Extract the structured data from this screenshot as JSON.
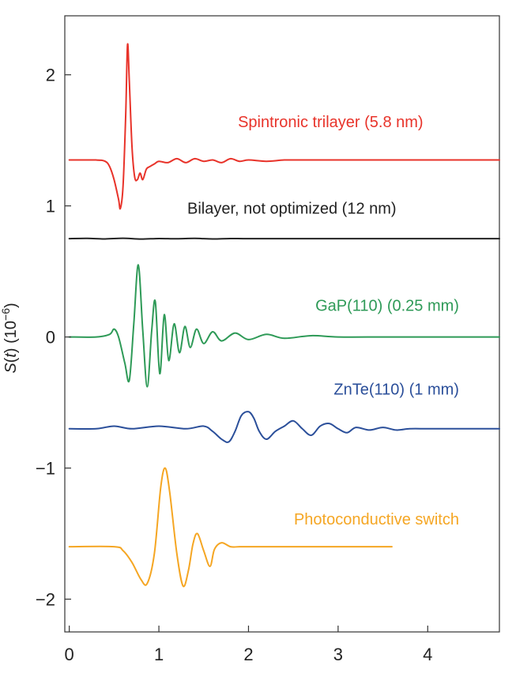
{
  "chart_data": {
    "type": "line",
    "xlabel": "",
    "ylabel": "S(t) (10−6)",
    "ylabel_parts": {
      "var": "S",
      "arg": "t",
      "unit_base": "10",
      "unit_exp": "−6"
    },
    "xlim": [
      -0.05,
      4.8
    ],
    "ylim": [
      -2.25,
      2.45
    ],
    "x_ticks": [
      0,
      1,
      2,
      3,
      4
    ],
    "x_tick_labels": [
      "0",
      "1",
      "2",
      "3",
      "4"
    ],
    "y_ticks": [
      -2,
      -1,
      0,
      1,
      2
    ],
    "y_tick_labels": [
      "−2",
      "−1",
      "0",
      "1",
      "2"
    ],
    "grid": false,
    "series": [
      {
        "name": "Spintronic trilayer (5.8 nm)",
        "color": "#e8332a",
        "label_anchor": [
          3.95,
          1.6
        ],
        "x": [
          0,
          0.3,
          0.4,
          0.45,
          0.5,
          0.55,
          0.57,
          0.6,
          0.63,
          0.65,
          0.67,
          0.7,
          0.73,
          0.76,
          0.79,
          0.82,
          0.86,
          0.9,
          0.95,
          1.0,
          1.1,
          1.2,
          1.3,
          1.4,
          1.5,
          1.6,
          1.7,
          1.8,
          1.9,
          2.0,
          2.2,
          2.4,
          2.6,
          2.8,
          3.0,
          3.5,
          4.0,
          4.8
        ],
        "y": [
          1.35,
          1.35,
          1.34,
          1.3,
          1.2,
          1.05,
          0.98,
          1.15,
          1.7,
          2.23,
          1.95,
          1.45,
          1.22,
          1.2,
          1.25,
          1.2,
          1.28,
          1.3,
          1.32,
          1.34,
          1.33,
          1.36,
          1.33,
          1.36,
          1.34,
          1.35,
          1.33,
          1.36,
          1.34,
          1.35,
          1.34,
          1.35,
          1.35,
          1.35,
          1.35,
          1.35,
          1.35,
          1.35
        ]
      },
      {
        "name": "Bilayer, not optimized (12 nm)",
        "color": "#222222",
        "label_anchor": [
          3.65,
          0.94
        ],
        "x": [
          0,
          0.2,
          0.4,
          0.6,
          0.8,
          1.0,
          1.2,
          1.4,
          1.6,
          1.8,
          2.0,
          2.5,
          3.0,
          3.5,
          4.0,
          4.8
        ],
        "y": [
          0.75,
          0.752,
          0.748,
          0.753,
          0.747,
          0.751,
          0.749,
          0.752,
          0.748,
          0.751,
          0.75,
          0.75,
          0.75,
          0.75,
          0.75,
          0.75
        ]
      },
      {
        "name": "GaP(110) (0.25 mm)",
        "color": "#2e9a57",
        "label_anchor": [
          4.35,
          0.2
        ],
        "x": [
          0,
          0.3,
          0.45,
          0.5,
          0.55,
          0.62,
          0.67,
          0.72,
          0.77,
          0.82,
          0.87,
          0.92,
          0.96,
          1.01,
          1.06,
          1.11,
          1.17,
          1.23,
          1.29,
          1.35,
          1.42,
          1.5,
          1.6,
          1.7,
          1.85,
          2.0,
          2.2,
          2.4,
          2.7,
          3.0,
          3.5,
          4.0,
          4.8
        ],
        "y": [
          0,
          0,
          0.02,
          0.06,
          0,
          -0.2,
          -0.33,
          0.1,
          0.55,
          0.05,
          -0.38,
          0.05,
          0.27,
          -0.28,
          0.17,
          -0.18,
          0.1,
          -0.12,
          0.08,
          -0.08,
          0.06,
          -0.05,
          0.04,
          -0.03,
          0.03,
          -0.02,
          0.02,
          -0.01,
          0.01,
          0,
          0,
          0,
          0
        ]
      },
      {
        "name": "ZnTe(110) (1 mm)",
        "color": "#2b4f9a",
        "label_anchor": [
          4.35,
          -0.44
        ],
        "x": [
          0,
          0.3,
          0.5,
          0.7,
          1.0,
          1.3,
          1.5,
          1.6,
          1.7,
          1.78,
          1.85,
          1.92,
          2.0,
          2.06,
          2.12,
          2.2,
          2.3,
          2.4,
          2.5,
          2.6,
          2.7,
          2.8,
          2.9,
          3.0,
          3.1,
          3.2,
          3.35,
          3.5,
          3.65,
          3.8,
          4.0,
          4.3,
          4.8
        ],
        "y": [
          -0.7,
          -0.7,
          -0.68,
          -0.7,
          -0.68,
          -0.7,
          -0.68,
          -0.72,
          -0.78,
          -0.8,
          -0.72,
          -0.6,
          -0.57,
          -0.62,
          -0.72,
          -0.78,
          -0.72,
          -0.68,
          -0.64,
          -0.7,
          -0.75,
          -0.68,
          -0.66,
          -0.7,
          -0.73,
          -0.69,
          -0.71,
          -0.69,
          -0.71,
          -0.7,
          -0.7,
          -0.7,
          -0.7
        ]
      },
      {
        "name": "Photoconductive switch",
        "color": "#f5a623",
        "label_anchor": [
          4.35,
          -1.43
        ],
        "x": [
          0,
          0.5,
          0.6,
          0.7,
          0.8,
          0.87,
          0.95,
          1.02,
          1.07,
          1.12,
          1.2,
          1.27,
          1.33,
          1.38,
          1.43,
          1.5,
          1.57,
          1.62,
          1.7,
          1.8,
          1.9,
          2.0,
          2.3,
          2.6,
          3.0,
          3.6
        ],
        "y": [
          -1.6,
          -1.6,
          -1.63,
          -1.72,
          -1.85,
          -1.88,
          -1.65,
          -1.15,
          -1.0,
          -1.18,
          -1.65,
          -1.9,
          -1.78,
          -1.58,
          -1.5,
          -1.63,
          -1.75,
          -1.62,
          -1.57,
          -1.6,
          -1.6,
          -1.6,
          -1.6,
          -1.6,
          -1.6,
          -1.6
        ]
      }
    ]
  }
}
